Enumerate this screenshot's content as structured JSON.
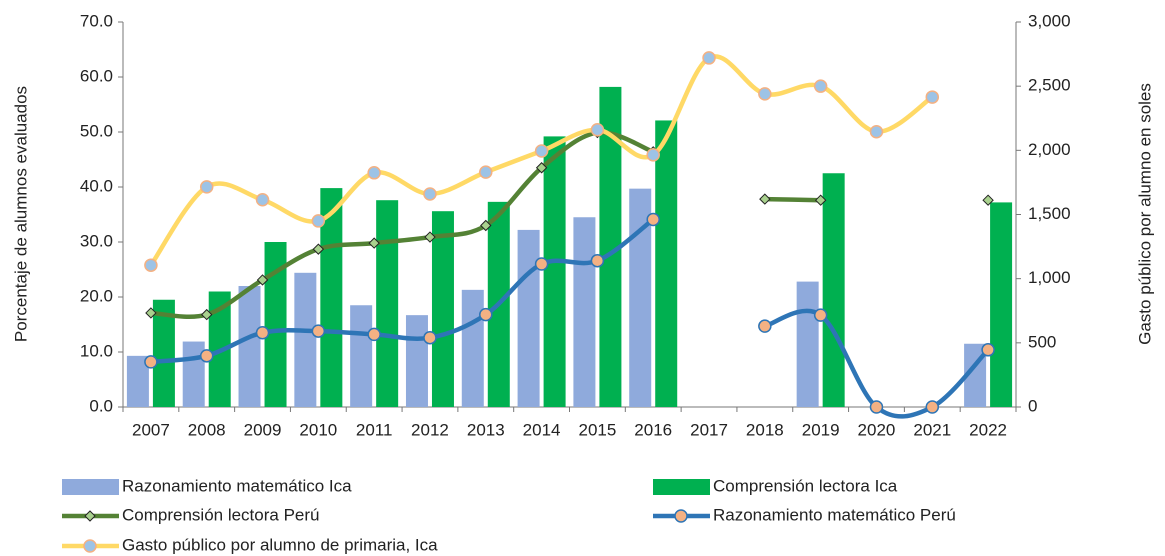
{
  "chart_data": {
    "type": "combo",
    "categories": [
      "2007",
      "2008",
      "2009",
      "2010",
      "2011",
      "2012",
      "2013",
      "2014",
      "2015",
      "2016",
      "2017",
      "2018",
      "2019",
      "2020",
      "2021",
      "2022"
    ],
    "ylabel": "Porcentaje de alumnos evaluados",
    "y2label": "Gasto público por alumno en soles",
    "ylim": [
      0,
      70
    ],
    "yticks": [
      {
        "value": 0,
        "label": "0.0"
      },
      {
        "value": 10,
        "label": "10.0"
      },
      {
        "value": 20,
        "label": "20.0"
      },
      {
        "value": 30,
        "label": "30.0"
      },
      {
        "value": 40,
        "label": "40.0"
      },
      {
        "value": 50,
        "label": "50.0"
      },
      {
        "value": 60,
        "label": "60.0"
      },
      {
        "value": 70,
        "label": "70.0"
      }
    ],
    "y2lim": [
      0,
      3000
    ],
    "y2ticks": [
      0,
      {
        "value": 500,
        "label": "500"
      },
      {
        "value": 1000,
        "label": "1,000"
      },
      {
        "value": 1500,
        "label": "1,500"
      },
      {
        "value": 2000,
        "label": "2,000"
      },
      {
        "value": 2500,
        "label": "2,500"
      },
      {
        "value": 3000,
        "label": "3,000"
      }
    ],
    "series": [
      {
        "name": "Razonamiento matemático Ica",
        "kind": "bar",
        "color": "#8faadc",
        "values": [
          9.3,
          11.9,
          22.0,
          24.4,
          18.5,
          16.7,
          21.3,
          32.2,
          34.5,
          39.7,
          null,
          null,
          22.8,
          null,
          null,
          11.5
        ]
      },
      {
        "name": "Comprensión lectora Ica",
        "kind": "bar",
        "color": "#00b050",
        "values": [
          19.5,
          21.0,
          30.0,
          39.8,
          37.6,
          35.6,
          37.3,
          49.2,
          58.2,
          52.1,
          null,
          null,
          42.5,
          null,
          null,
          37.2
        ]
      },
      {
        "name": "Comprensión lectora Perú",
        "kind": "line",
        "color": "#548235",
        "marker": "diamond",
        "marker_color": "#a9d18e",
        "values": [
          17.1,
          16.8,
          23.1,
          28.7,
          29.8,
          30.9,
          33.0,
          43.5,
          49.9,
          46.4,
          null,
          37.8,
          37.6,
          null,
          null,
          37.6
        ]
      },
      {
        "name": "Razonamiento matemático Perú",
        "kind": "line",
        "color": "#2e75b6",
        "marker": "circle",
        "marker_color": "#f4b183",
        "values": [
          8.2,
          9.3,
          13.5,
          13.8,
          13.2,
          12.6,
          16.8,
          26.0,
          26.6,
          34.1,
          null,
          14.7,
          16.7,
          0,
          0,
          10.4
        ]
      },
      {
        "name": "Gasto público por alumno de primaria, Ica",
        "kind": "line",
        "axis": "y2",
        "color": "#ffd966",
        "marker": "circle",
        "marker_color": "#9dc3e6",
        "values": [
          1105,
          1715,
          1615,
          1450,
          1825,
          1660,
          1830,
          1995,
          2160,
          1965,
          2720,
          2440,
          2500,
          2145,
          2415,
          null
        ]
      }
    ]
  }
}
